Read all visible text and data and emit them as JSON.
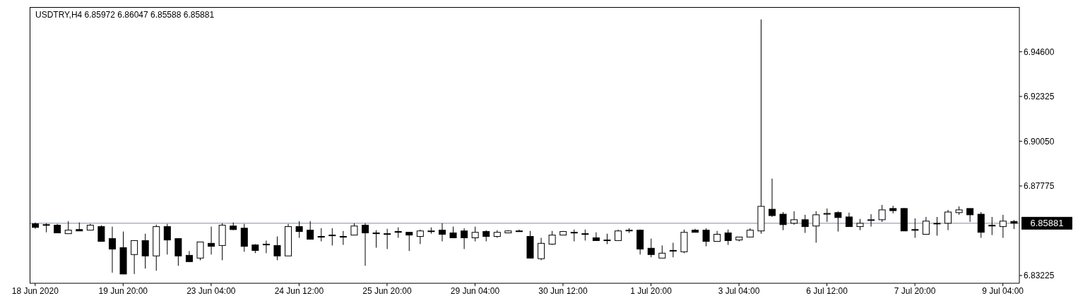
{
  "chart_data": {
    "type": "candlestick",
    "title": "USDTRY,H4  6.85972 6.86047 6.85588 6.85881",
    "categories": [
      "18 Jun 2020",
      null,
      null,
      null,
      null,
      null,
      null,
      null,
      "19 Jun 20:00",
      null,
      null,
      null,
      null,
      null,
      null,
      null,
      "23 Jun 04:00",
      null,
      null,
      null,
      null,
      null,
      null,
      null,
      "24 Jun 12:00",
      null,
      null,
      null,
      null,
      null,
      null,
      null,
      "25 Jun 20:00",
      null,
      null,
      null,
      null,
      null,
      null,
      null,
      "29 Jun 04:00",
      null,
      null,
      null,
      null,
      null,
      null,
      null,
      "30 Jun 12:00",
      null,
      null,
      null,
      null,
      null,
      null,
      null,
      "1 Jul 20:00",
      null,
      null,
      null,
      null,
      null,
      null,
      null,
      "3 Jul 04:00",
      null,
      null,
      null,
      null,
      null,
      null,
      null,
      "6 Jul 12:00",
      null,
      null,
      null,
      null,
      null,
      null,
      null,
      "7 Jul 20:00",
      null,
      null,
      null,
      null,
      null,
      null,
      null,
      "9 Jul 04:00",
      null
    ],
    "ohlc": [
      [
        6.8585,
        6.8592,
        6.856,
        6.8567
      ],
      [
        6.8581,
        6.8588,
        6.8542,
        6.8578
      ],
      [
        6.8578,
        6.8585,
        6.8539,
        6.8539
      ],
      [
        6.8535,
        6.8599,
        6.8535,
        6.8553
      ],
      [
        6.8556,
        6.8592,
        6.8549,
        6.8549
      ],
      [
        6.8553,
        6.8585,
        6.8553,
        6.8578
      ],
      [
        6.8571,
        6.8578,
        6.8496,
        6.8496
      ],
      [
        6.851,
        6.8571,
        6.8337,
        6.8457
      ],
      [
        6.8464,
        6.8546,
        6.833,
        6.833
      ],
      [
        6.8429,
        6.85,
        6.833,
        6.85
      ],
      [
        6.85,
        6.8535,
        6.8358,
        6.8422
      ],
      [
        6.8422,
        6.8581,
        6.8347,
        6.8571
      ],
      [
        6.8571,
        6.8585,
        6.8429,
        6.8503
      ],
      [
        6.851,
        6.851,
        6.8372,
        6.8422
      ],
      [
        6.8425,
        6.8447,
        6.8393,
        6.8393
      ],
      [
        6.8411,
        6.8493,
        6.84,
        6.8493
      ],
      [
        6.8486,
        6.8571,
        6.8429,
        6.8471
      ],
      [
        6.8475,
        6.8588,
        6.84,
        6.8578
      ],
      [
        6.8574,
        6.8592,
        6.8553,
        6.8556
      ],
      [
        6.8563,
        6.8585,
        6.8443,
        6.8471
      ],
      [
        6.8478,
        6.8482,
        6.8436,
        6.845
      ],
      [
        6.8482,
        6.85,
        6.8436,
        6.8478
      ],
      [
        6.8475,
        6.8521,
        6.84,
        6.8422
      ],
      [
        6.8422,
        6.8585,
        6.8422,
        6.8571
      ],
      [
        6.8571,
        6.8599,
        6.8514,
        6.8546
      ],
      [
        6.8553,
        6.8599,
        6.8507,
        6.8507
      ],
      [
        6.8521,
        6.8563,
        6.8496,
        6.8518
      ],
      [
        6.8528,
        6.8563,
        6.8475,
        6.8525
      ],
      [
        6.8521,
        6.8549,
        6.8478,
        6.8518
      ],
      [
        6.8528,
        6.8588,
        6.8528,
        6.8574
      ],
      [
        6.8578,
        6.8588,
        6.8372,
        6.8539
      ],
      [
        6.8539,
        6.8553,
        6.8464,
        6.8535
      ],
      [
        6.8535,
        6.856,
        6.8457,
        6.8532
      ],
      [
        6.8546,
        6.8567,
        6.8514,
        6.8542
      ],
      [
        6.8542,
        6.8542,
        6.8447,
        6.8528
      ],
      [
        6.8521,
        6.8556,
        6.8482,
        6.8549
      ],
      [
        6.8546,
        6.8567,
        6.8535,
        6.8549
      ],
      [
        6.8553,
        6.8588,
        6.8496,
        6.8532
      ],
      [
        6.8539,
        6.8571,
        6.8514,
        6.8514
      ],
      [
        6.8549,
        6.8563,
        6.8457,
        6.8514
      ],
      [
        6.8514,
        6.8571,
        6.8496,
        6.8542
      ],
      [
        6.8546,
        6.8553,
        6.8496,
        6.8521
      ],
      [
        6.8521,
        6.8553,
        6.8514,
        6.8542
      ],
      [
        6.8539,
        6.8553,
        6.8539,
        6.8549
      ],
      [
        6.8549,
        6.8556,
        6.8546,
        6.8546
      ],
      [
        6.8521,
        6.8549,
        6.8411,
        6.8411
      ],
      [
        6.8408,
        6.8514,
        6.84,
        6.8486
      ],
      [
        6.8482,
        6.8549,
        6.8478,
        6.8528
      ],
      [
        6.8528,
        6.8549,
        6.8528,
        6.8546
      ],
      [
        6.8542,
        6.8556,
        6.8496,
        6.8539
      ],
      [
        6.8535,
        6.8556,
        6.85,
        6.8532
      ],
      [
        6.8514,
        6.8542,
        6.85,
        6.85
      ],
      [
        6.8503,
        6.8535,
        6.8482,
        6.85
      ],
      [
        6.85,
        6.8556,
        6.85,
        6.8549
      ],
      [
        6.8549,
        6.8563,
        6.8539,
        6.8553
      ],
      [
        6.8553,
        6.8556,
        6.8429,
        6.8457
      ],
      [
        6.8461,
        6.851,
        6.8415,
        6.8429
      ],
      [
        6.8411,
        6.8475,
        6.8411,
        6.8436
      ],
      [
        6.8447,
        6.8489,
        6.8415,
        6.845
      ],
      [
        6.8443,
        6.8556,
        6.8436,
        6.8542
      ],
      [
        6.8553,
        6.856,
        6.8542,
        6.8542
      ],
      [
        6.8553,
        6.8563,
        6.8471,
        6.8496
      ],
      [
        6.8496,
        6.8549,
        6.8496,
        6.8532
      ],
      [
        6.8539,
        6.8556,
        6.8478,
        6.85
      ],
      [
        6.8503,
        6.8518,
        6.8496,
        6.8518
      ],
      [
        6.8518,
        6.8563,
        6.8518,
        6.8553
      ],
      [
        6.8549,
        6.9624,
        6.8535,
        6.8674
      ],
      [
        6.8659,
        6.8815,
        6.862,
        6.8627
      ],
      [
        6.8634,
        6.8645,
        6.8553,
        6.8581
      ],
      [
        6.8588,
        6.8649,
        6.8581,
        6.8606
      ],
      [
        6.8606,
        6.8631,
        6.8539,
        6.8571
      ],
      [
        6.8574,
        6.8649,
        6.8489,
        6.8631
      ],
      [
        6.8634,
        6.8663,
        6.8595,
        6.8638
      ],
      [
        6.8642,
        6.8649,
        6.8546,
        6.8617
      ],
      [
        6.862,
        6.8642,
        6.8571,
        6.8571
      ],
      [
        6.8571,
        6.861,
        6.8553,
        6.8588
      ],
      [
        6.8602,
        6.8634,
        6.8571,
        6.8606
      ],
      [
        6.8606,
        6.8681,
        6.8595,
        6.8656
      ],
      [
        6.8663,
        6.8677,
        6.8638,
        6.8652
      ],
      [
        6.8663,
        6.8666,
        6.8549,
        6.8549
      ],
      [
        6.8556,
        6.8613,
        6.8514,
        6.8553
      ],
      [
        6.8532,
        6.862,
        6.8532,
        6.8599
      ],
      [
        6.8585,
        6.862,
        6.8525,
        6.8588
      ],
      [
        6.8588,
        6.8656,
        6.8553,
        6.8645
      ],
      [
        6.8642,
        6.8674,
        6.8631,
        6.8656
      ],
      [
        6.8663,
        6.8663,
        6.8595,
        6.8631
      ],
      [
        6.8634,
        6.8645,
        6.8514,
        6.8542
      ],
      [
        6.8578,
        6.862,
        6.8528,
        6.8574
      ],
      [
        6.8571,
        6.8631,
        6.8514,
        6.8599
      ],
      [
        6.85972,
        6.86047,
        6.85588,
        6.85881
      ]
    ],
    "color": "#000000",
    "ylim": [
      6.8283,
      6.9687
    ],
    "yticks": [
      {
        "value": 6.83225,
        "label": "6.83225"
      },
      {
        "value": 6.87775,
        "label": "6.87775"
      },
      {
        "value": 6.9005,
        "label": "6.90050"
      },
      {
        "value": 6.92325,
        "label": "6.92325"
      },
      {
        "value": 6.946,
        "label": "6.94600"
      }
    ],
    "ref_lines": [
      {
        "axis": "y",
        "value": 6.85881,
        "label": "6.85881",
        "color": "#a9b4c2"
      }
    ],
    "grid": false,
    "legend": false
  }
}
